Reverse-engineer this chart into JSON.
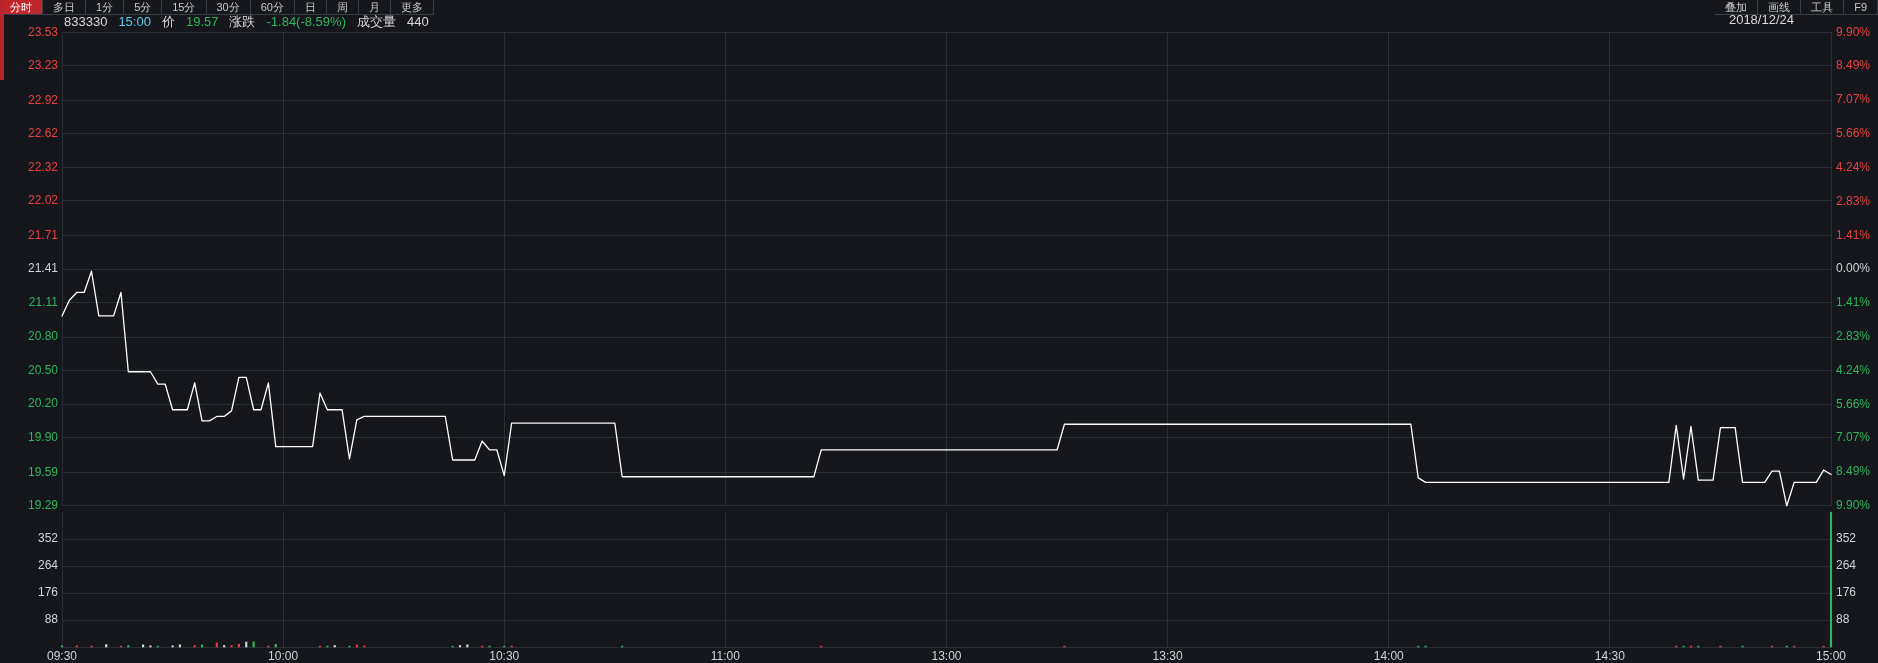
{
  "chart_data": [
    {
      "type": "other",
      "annotations": [
        "分时",
        "多日",
        "1分",
        "5分",
        "15分",
        "30分",
        "60分",
        "日",
        "周",
        "月",
        "更多"
      ]
    },
    {
      "type": "other",
      "annotations": [
        "叠加",
        "画线",
        "工具",
        "F9"
      ]
    },
    {
      "type": "line",
      "title": "833330 15:00 价 19.57 涨跌 -1.84(-8.59%) 成交量 440",
      "subtitle": "2018/12/24",
      "color": "#ffffff",
      "categories": [
        null,
        null,
        null,
        null,
        null,
        null,
        null,
        null,
        null,
        null,
        null,
        null,
        null,
        null,
        null,
        null,
        null,
        null,
        null,
        null,
        null,
        null,
        null,
        null,
        null,
        null,
        null,
        null,
        null,
        null,
        null,
        null,
        null,
        null,
        null,
        null,
        null,
        null,
        null,
        null,
        null,
        null,
        null,
        null,
        null,
        null,
        null,
        null,
        null,
        null,
        null,
        null,
        null,
        null,
        null,
        null,
        null,
        null,
        null,
        null,
        null,
        null,
        null,
        null,
        null,
        null,
        null,
        null,
        null,
        null,
        null,
        null,
        null,
        null,
        null,
        null,
        null,
        null,
        null,
        null,
        null,
        null,
        null,
        null,
        null,
        null,
        null,
        null,
        null,
        null,
        null,
        null,
        null,
        null,
        null,
        null,
        null,
        null,
        null,
        null,
        null,
        null,
        null,
        null,
        null,
        null,
        null,
        null,
        null,
        null,
        null,
        null,
        null,
        null,
        null,
        null,
        null,
        null,
        null,
        null,
        null,
        null,
        null,
        null,
        null,
        null,
        null,
        null,
        null,
        null,
        null,
        null,
        null,
        null,
        null,
        null,
        null,
        null,
        null,
        null,
        null,
        null,
        null,
        null,
        null,
        null,
        null,
        null,
        null,
        null,
        null,
        null,
        null,
        null,
        null,
        null,
        null,
        null,
        null,
        null,
        null,
        null,
        null,
        null,
        null,
        null,
        null,
        null,
        null,
        null,
        null,
        null,
        null,
        null,
        null,
        null,
        null,
        null,
        null,
        null,
        null,
        null,
        null,
        null,
        null,
        null,
        null,
        null,
        null,
        null,
        null,
        null,
        null,
        null,
        null,
        null,
        null,
        null,
        null,
        null,
        null,
        null,
        null,
        null,
        null,
        null,
        null,
        null,
        null,
        null,
        null,
        null,
        null,
        null,
        null,
        null,
        null,
        null,
        null,
        null,
        null,
        null,
        null,
        null,
        null,
        null,
        null,
        null,
        null,
        null,
        null,
        null,
        null,
        null,
        null,
        null,
        null,
        null,
        null,
        null,
        null
      ],
      "values": [
        20.99,
        21.13,
        21.2,
        21.2,
        21.39,
        20.99,
        20.99,
        20.99,
        21.2,
        20.49,
        20.49,
        20.49,
        20.49,
        20.38,
        20.38,
        20.15,
        20.15,
        20.15,
        20.39,
        20.05,
        20.05,
        20.09,
        20.09,
        20.14,
        20.44,
        20.44,
        20.15,
        20.15,
        20.39,
        19.82,
        19.82,
        19.82,
        19.82,
        19.82,
        19.82,
        20.3,
        20.15,
        20.15,
        20.15,
        19.71,
        20.06,
        20.09,
        20.09,
        20.09,
        20.09,
        20.09,
        20.09,
        20.09,
        20.09,
        20.09,
        20.09,
        20.09,
        20.09,
        19.7,
        19.7,
        19.7,
        19.7,
        19.87,
        19.79,
        19.79,
        19.56,
        20.03,
        20.03,
        20.03,
        20.03,
        20.03,
        20.03,
        20.03,
        20.03,
        20.03,
        20.03,
        20.03,
        20.03,
        20.03,
        20.03,
        20.03,
        19.55,
        19.55,
        19.55,
        19.55,
        19.55,
        19.55,
        19.55,
        19.55,
        19.55,
        19.55,
        19.55,
        19.55,
        19.55,
        19.55,
        19.55,
        19.55,
        19.55,
        19.55,
        19.55,
        19.55,
        19.55,
        19.55,
        19.55,
        19.55,
        19.55,
        19.55,
        19.55,
        19.79,
        19.79,
        19.79,
        19.79,
        19.79,
        19.79,
        19.79,
        19.79,
        19.79,
        19.79,
        19.79,
        19.79,
        19.79,
        19.79,
        19.79,
        19.79,
        19.79,
        19.79,
        19.79,
        19.79,
        19.79,
        19.79,
        19.79,
        19.79,
        19.79,
        19.79,
        19.79,
        19.79,
        19.79,
        19.79,
        19.79,
        19.79,
        19.79,
        20.02,
        20.02,
        20.02,
        20.02,
        20.02,
        20.02,
        20.02,
        20.02,
        20.02,
        20.02,
        20.02,
        20.02,
        20.02,
        20.02,
        20.02,
        20.02,
        20.02,
        20.02,
        20.02,
        20.02,
        20.02,
        20.02,
        20.02,
        20.02,
        20.02,
        20.02,
        20.02,
        20.02,
        20.02,
        20.02,
        20.02,
        20.02,
        20.02,
        20.02,
        20.02,
        20.02,
        20.02,
        20.02,
        20.02,
        20.02,
        20.02,
        20.02,
        20.02,
        20.02,
        20.02,
        20.02,
        20.02,
        20.02,
        19.54,
        19.5,
        19.5,
        19.5,
        19.5,
        19.5,
        19.5,
        19.5,
        19.5,
        19.5,
        19.5,
        19.5,
        19.5,
        19.5,
        19.5,
        19.5,
        19.5,
        19.5,
        19.5,
        19.5,
        19.5,
        19.5,
        19.5,
        19.5,
        19.5,
        19.5,
        19.5,
        19.5,
        19.5,
        19.5,
        19.5,
        19.5,
        19.5,
        19.5,
        19.5,
        20.01,
        19.53,
        20,
        19.52,
        19.52,
        19.52,
        19.99,
        19.99,
        19.99,
        19.5,
        19.5,
        19.5,
        19.5,
        19.6,
        19.6,
        19.29,
        19.5,
        19.5,
        19.5,
        19.5,
        19.61,
        19.57
      ],
      "ylim": [
        19.29,
        23.53
      ],
      "yticks": [
        23.53,
        23.23,
        22.92,
        22.62,
        22.32,
        22.02,
        21.71,
        21.41,
        21.11,
        {
          "value": 20.8,
          "label": "20.80"
        },
        {
          "value": 20.5,
          "label": "20.50"
        },
        {
          "value": 20.2,
          "label": "20.20"
        },
        {
          "value": 19.9,
          "label": "19.90"
        },
        19.59,
        19.29
      ],
      "y2lim": [
        -9.9,
        9.9
      ],
      "y2ticks": [
        {
          "value": 9.9,
          "label": "9.90%"
        },
        {
          "value": 8.49,
          "label": "8.49%"
        },
        {
          "value": 7.07,
          "label": "7.07%"
        },
        {
          "value": 5.66,
          "label": "5.66%"
        },
        {
          "value": 4.24,
          "label": "4.24%"
        },
        {
          "value": 2.83,
          "label": "2.83%"
        },
        {
          "value": 1.41,
          "label": "1.41%"
        },
        {
          "value": 0,
          "label": "0.00%"
        },
        {
          "value": -1.41,
          "label": "1.41%"
        },
        {
          "value": -2.83,
          "label": "2.83%"
        },
        {
          "value": -4.24,
          "label": "4.24%"
        },
        {
          "value": -5.66,
          "label": "5.66%"
        },
        {
          "value": -7.07,
          "label": "7.07%"
        },
        {
          "value": -8.49,
          "label": "8.49%"
        },
        {
          "value": -9.9,
          "label": "9.90%"
        }
      ],
      "grid": true
    },
    {
      "type": "bar",
      "categories": [
        "09:30",
        null,
        null,
        null,
        null,
        null,
        null,
        null,
        null,
        null,
        null,
        null,
        null,
        null,
        null,
        null,
        null,
        null,
        null,
        null,
        null,
        null,
        null,
        null,
        null,
        null,
        null,
        null,
        null,
        null,
        "10:00",
        null,
        null,
        null,
        null,
        null,
        null,
        null,
        null,
        null,
        null,
        null,
        null,
        null,
        null,
        null,
        null,
        null,
        null,
        null,
        null,
        null,
        null,
        null,
        null,
        null,
        null,
        null,
        null,
        null,
        "10:30",
        null,
        null,
        null,
        null,
        null,
        null,
        null,
        null,
        null,
        null,
        null,
        null,
        null,
        null,
        null,
        null,
        null,
        null,
        null,
        null,
        null,
        null,
        null,
        null,
        null,
        null,
        null,
        null,
        null,
        "11:00",
        null,
        null,
        null,
        null,
        null,
        null,
        null,
        null,
        null,
        null,
        null,
        null,
        null,
        null,
        null,
        null,
        null,
        null,
        null,
        null,
        null,
        null,
        null,
        null,
        null,
        null,
        null,
        null,
        null,
        "13:00",
        null,
        null,
        null,
        null,
        null,
        null,
        null,
        null,
        null,
        null,
        null,
        null,
        null,
        null,
        null,
        null,
        null,
        null,
        null,
        null,
        null,
        null,
        null,
        null,
        null,
        null,
        null,
        null,
        null,
        "13:30",
        null,
        null,
        null,
        null,
        null,
        null,
        null,
        null,
        null,
        null,
        null,
        null,
        null,
        null,
        null,
        null,
        null,
        null,
        null,
        null,
        null,
        null,
        null,
        null,
        null,
        null,
        null,
        null,
        null,
        "14:00",
        null,
        null,
        null,
        null,
        null,
        null,
        null,
        null,
        null,
        null,
        null,
        null,
        null,
        null,
        null,
        null,
        null,
        null,
        null,
        null,
        null,
        null,
        null,
        null,
        null,
        null,
        null,
        null,
        null,
        "14:30",
        null,
        null,
        null,
        null,
        null,
        null,
        null,
        null,
        null,
        null,
        null,
        null,
        null,
        null,
        null,
        null,
        null,
        null,
        null,
        null,
        null,
        null,
        null,
        null,
        null,
        null,
        null,
        null,
        null,
        "15:00"
      ],
      "values": [
        4,
        null,
        4,
        null,
        3,
        null,
        8,
        null,
        3,
        5,
        null,
        7,
        4,
        3,
        null,
        4,
        7,
        null,
        5,
        7,
        null,
        13,
        5,
        5,
        9,
        16,
        17,
        null,
        3,
        9,
        null,
        null,
        null,
        null,
        null,
        3,
        3,
        5,
        null,
        3,
        7,
        4,
        null,
        null,
        null,
        null,
        null,
        null,
        null,
        null,
        null,
        null,
        null,
        3,
        5,
        7,
        null,
        3,
        3,
        null,
        3,
        3,
        null,
        null,
        null,
        null,
        null,
        null,
        null,
        null,
        null,
        null,
        null,
        null,
        null,
        null,
        3,
        null,
        null,
        null,
        null,
        null,
        null,
        null,
        null,
        null,
        null,
        null,
        null,
        null,
        null,
        null,
        null,
        null,
        null,
        null,
        null,
        null,
        null,
        null,
        null,
        null,
        null,
        3,
        null,
        null,
        null,
        null,
        null,
        null,
        null,
        null,
        null,
        null,
        null,
        null,
        null,
        null,
        null,
        null,
        null,
        null,
        null,
        null,
        null,
        null,
        null,
        null,
        null,
        null,
        null,
        null,
        null,
        null,
        null,
        null,
        3,
        null,
        null,
        null,
        null,
        null,
        null,
        null,
        null,
        null,
        null,
        null,
        null,
        null,
        null,
        null,
        null,
        null,
        null,
        null,
        null,
        null,
        null,
        null,
        null,
        null,
        null,
        null,
        null,
        null,
        null,
        null,
        null,
        null,
        null,
        null,
        null,
        null,
        null,
        null,
        null,
        null,
        null,
        null,
        null,
        null,
        null,
        null,
        3,
        3,
        null,
        null,
        null,
        null,
        null,
        null,
        null,
        null,
        null,
        null,
        null,
        null,
        null,
        null,
        null,
        null,
        null,
        null,
        null,
        null,
        null,
        null,
        null,
        null,
        null,
        null,
        null,
        null,
        null,
        null,
        null,
        null,
        null,
        3,
        3,
        3,
        3,
        null,
        null,
        3,
        null,
        null,
        3,
        null,
        null,
        null,
        3,
        null,
        3,
        3,
        null,
        null,
        null,
        3,
        440
      ],
      "colors": [
        "#31b35b",
        null,
        "#e8403f",
        null,
        "#e8403f",
        null,
        "#d8d8d8",
        null,
        "#e8403f",
        "#31b35b",
        null,
        "#d8d8d8",
        "#d8d8d8",
        "#31b35b",
        null,
        "#d8d8d8",
        "#d8d8d8",
        null,
        "#e8403f",
        "#31b35b",
        null,
        "#e8403f",
        "#d8d8d8",
        "#e8403f",
        "#e8403f",
        "#d8d8d8",
        "#31b35b",
        null,
        "#e8403f",
        "#31b35b",
        null,
        null,
        null,
        null,
        null,
        "#e8403f",
        "#31b35b",
        "#d8d8d8",
        null,
        "#31b35b",
        "#e8403f",
        "#e8403f",
        null,
        null,
        null,
        null,
        null,
        null,
        null,
        null,
        null,
        null,
        null,
        "#31b35b",
        "#d8d8d8",
        "#d8d8d8",
        null,
        "#e8403f",
        "#31b35b",
        null,
        "#31b35b",
        "#e8403f",
        null,
        null,
        null,
        null,
        null,
        null,
        null,
        null,
        null,
        null,
        null,
        null,
        null,
        null,
        "#31b35b",
        null,
        null,
        null,
        null,
        null,
        null,
        null,
        null,
        null,
        null,
        null,
        null,
        null,
        null,
        null,
        null,
        null,
        null,
        null,
        null,
        null,
        null,
        null,
        null,
        null,
        null,
        "#e8403f",
        null,
        null,
        null,
        null,
        null,
        null,
        null,
        null,
        null,
        null,
        null,
        null,
        null,
        null,
        null,
        null,
        null,
        null,
        null,
        null,
        null,
        null,
        null,
        null,
        null,
        null,
        null,
        null,
        null,
        null,
        null,
        null,
        "#e8403f",
        null,
        null,
        null,
        null,
        null,
        null,
        null,
        null,
        null,
        null,
        null,
        null,
        null,
        null,
        null,
        null,
        null,
        null,
        null,
        null,
        null,
        null,
        null,
        null,
        null,
        null,
        null,
        null,
        null,
        null,
        null,
        null,
        null,
        null,
        null,
        null,
        null,
        null,
        null,
        null,
        null,
        null,
        null,
        null,
        null,
        null,
        null,
        "#31b35b",
        "#31b35b",
        null,
        null,
        null,
        null,
        null,
        null,
        null,
        null,
        null,
        null,
        null,
        null,
        null,
        null,
        null,
        null,
        null,
        null,
        null,
        null,
        null,
        null,
        null,
        null,
        null,
        null,
        null,
        null,
        null,
        null,
        null,
        null,
        null,
        "#e8403f",
        "#31b35b",
        "#e8403f",
        "#31b35b",
        null,
        null,
        "#e8403f",
        null,
        null,
        "#31b35b",
        null,
        null,
        null,
        "#e8403f",
        null,
        "#31b35b",
        "#e8403f",
        null,
        null,
        null,
        "#e8403f",
        "#31b35b"
      ],
      "ylim": [
        0,
        440
      ],
      "yticks": [
        88,
        176,
        264,
        352
      ],
      "y2lim": [
        0,
        440
      ],
      "y2ticks": [
        88,
        176,
        264,
        352
      ],
      "grid": true
    }
  ]
}
